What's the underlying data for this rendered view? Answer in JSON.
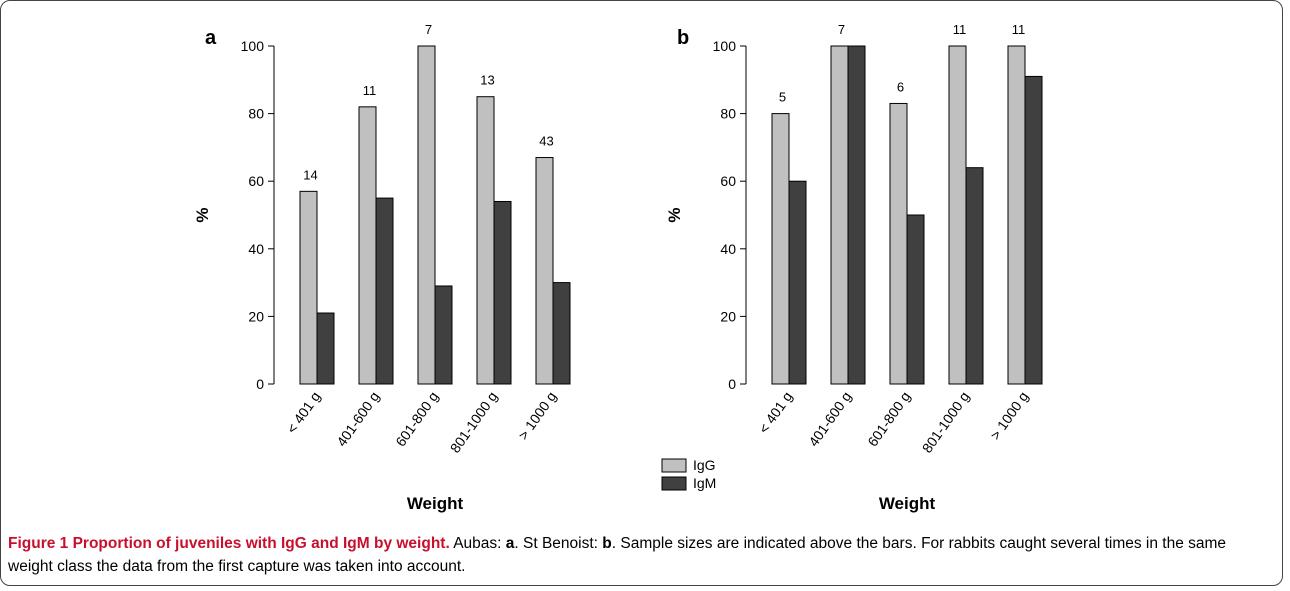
{
  "legend": {
    "items": [
      {
        "name": "IgG",
        "color": "#c0c0c0"
      },
      {
        "name": "IgM",
        "color": "#404040"
      }
    ]
  },
  "caption": {
    "title": "Figure 1 Proportion of juveniles with IgG and IgM by weight.",
    "text_1": " Aubas: ",
    "bold_a": "a",
    "text_2": ". St Benoist: ",
    "bold_b": "b",
    "text_3": ". Sample sizes are indicated above the bars. For rabbits caught several times in the same weight class the data from the first capture was taken into account."
  },
  "chart_data": [
    {
      "type": "bar",
      "panel_label": "a",
      "categories": [
        "< 401 g",
        "401-600 g",
        "601-800 g",
        "801-1000 g",
        "> 1000 g"
      ],
      "series": [
        {
          "name": "IgG",
          "values": [
            57,
            82,
            100,
            85,
            67
          ],
          "color": "#c0c0c0"
        },
        {
          "name": "IgM",
          "values": [
            21,
            55,
            29,
            54,
            30
          ],
          "color": "#404040"
        }
      ],
      "sample_sizes": [
        "14",
        "11",
        "7",
        "13",
        "43"
      ],
      "xlabel": "Weight",
      "ylabel": "%",
      "ylim": [
        0,
        100
      ],
      "yticks": [
        "0",
        "20",
        "40",
        "60",
        "80",
        "100"
      ],
      "grid": false
    },
    {
      "type": "bar",
      "panel_label": "b",
      "categories": [
        "< 401 g",
        "401-600 g",
        "601-800 g",
        "801-1000 g",
        "> 1000 g"
      ],
      "series": [
        {
          "name": "IgG",
          "values": [
            80,
            100,
            83,
            100,
            100
          ],
          "color": "#c0c0c0"
        },
        {
          "name": "IgM",
          "values": [
            60,
            100,
            50,
            64,
            91
          ],
          "color": "#404040"
        }
      ],
      "sample_sizes": [
        "5",
        "7",
        "6",
        "11",
        "11"
      ],
      "xlabel": "Weight",
      "ylabel": "%",
      "ylim": [
        0,
        100
      ],
      "yticks": [
        "0",
        "20",
        "40",
        "60",
        "80",
        "100"
      ],
      "grid": false
    }
  ]
}
